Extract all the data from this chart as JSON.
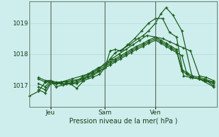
{
  "title": "Pression niveau de la mer( hPa )",
  "bg_color": "#ceeeed",
  "grid_color": "#b0d8d0",
  "line_color": "#1a5c1a",
  "vline_color": "#556655",
  "ylim": [
    1016.3,
    1019.7
  ],
  "yticks": [
    1017,
    1018,
    1019
  ],
  "xtick_labels": [
    "Jeu",
    "Sam",
    "Ven"
  ],
  "xtick_positions": [
    0.07,
    0.38,
    0.67
  ],
  "vline_positions": [
    0.07,
    0.38,
    0.67
  ],
  "lines": [
    {
      "x": [
        0.0,
        0.04,
        0.07,
        0.1,
        0.13,
        0.16,
        0.19,
        0.22,
        0.25,
        0.28,
        0.31,
        0.34,
        0.38,
        0.41,
        0.44,
        0.47,
        0.5,
        0.53,
        0.56,
        0.6,
        0.63,
        0.67,
        0.7,
        0.73,
        0.76,
        0.79,
        0.82,
        0.85,
        0.88,
        0.92,
        0.95,
        1.0
      ],
      "y": [
        1016.85,
        1016.75,
        1017.05,
        1017.05,
        1017.05,
        1017.05,
        1017.05,
        1017.05,
        1017.15,
        1017.25,
        1017.35,
        1017.45,
        1017.55,
        1017.65,
        1017.75,
        1017.85,
        1017.95,
        1018.05,
        1018.15,
        1018.25,
        1018.35,
        1018.45,
        1018.35,
        1018.25,
        1018.15,
        1018.05,
        1017.95,
        1017.35,
        1017.25,
        1017.2,
        1017.15,
        1017.1
      ]
    },
    {
      "x": [
        0.0,
        0.04,
        0.07,
        0.1,
        0.13,
        0.16,
        0.19,
        0.22,
        0.25,
        0.28,
        0.31,
        0.34,
        0.38,
        0.41,
        0.44,
        0.47,
        0.5,
        0.53,
        0.56,
        0.6,
        0.63,
        0.67,
        0.7,
        0.73,
        0.76,
        0.79,
        0.82,
        0.85,
        0.88,
        0.92,
        0.95,
        1.0
      ],
      "y": [
        1016.95,
        1016.85,
        1017.1,
        1017.05,
        1017.05,
        1017.05,
        1017.05,
        1017.1,
        1017.2,
        1017.3,
        1017.4,
        1017.5,
        1017.6,
        1017.7,
        1017.8,
        1017.9,
        1018.0,
        1018.1,
        1018.2,
        1018.3,
        1018.4,
        1018.5,
        1018.4,
        1018.3,
        1018.2,
        1018.1,
        1017.45,
        1017.35,
        1017.25,
        1017.2,
        1017.15,
        1017.05
      ]
    },
    {
      "x": [
        0.0,
        0.04,
        0.07,
        0.1,
        0.13,
        0.16,
        0.19,
        0.22,
        0.25,
        0.28,
        0.31,
        0.34,
        0.38,
        0.41,
        0.44,
        0.47,
        0.5,
        0.53,
        0.56,
        0.6,
        0.63,
        0.67,
        0.7,
        0.73,
        0.76,
        0.79,
        0.82,
        0.85,
        0.88,
        0.92,
        0.95,
        1.0
      ],
      "y": [
        1017.05,
        1016.95,
        1017.15,
        1017.1,
        1017.1,
        1017.1,
        1017.1,
        1017.15,
        1017.25,
        1017.35,
        1017.45,
        1017.55,
        1017.65,
        1017.75,
        1017.85,
        1017.95,
        1018.05,
        1018.15,
        1018.25,
        1018.35,
        1018.45,
        1018.55,
        1018.45,
        1018.35,
        1018.25,
        1018.15,
        1017.5,
        1017.4,
        1017.3,
        1017.25,
        1017.2,
        1017.1
      ]
    },
    {
      "x": [
        0.0,
        0.04,
        0.07,
        0.1,
        0.13,
        0.19,
        0.25,
        0.31,
        0.35,
        0.38,
        0.41,
        0.44,
        0.48,
        0.52,
        0.57,
        0.6,
        0.63,
        0.67,
        0.7,
        0.73,
        0.77,
        0.82,
        0.88,
        0.92,
        1.0
      ],
      "y": [
        1017.2,
        1017.1,
        1017.1,
        1017.05,
        1017.1,
        1017.15,
        1017.2,
        1017.3,
        1017.45,
        1017.55,
        1017.85,
        1018.05,
        1018.15,
        1018.3,
        1018.5,
        1018.6,
        1018.75,
        1019.0,
        1019.3,
        1019.5,
        1019.25,
        1018.75,
        1017.25,
        1017.2,
        1016.95
      ]
    },
    {
      "x": [
        0.0,
        0.04,
        0.07,
        0.1,
        0.13,
        0.19,
        0.25,
        0.31,
        0.35,
        0.38,
        0.42,
        0.46,
        0.5,
        0.54,
        0.58,
        0.62,
        0.67,
        0.71,
        0.75,
        0.79,
        0.83,
        0.87,
        0.92,
        0.96,
        1.0
      ],
      "y": [
        1017.25,
        1017.15,
        1017.15,
        1017.05,
        1017.1,
        1017.2,
        1017.3,
        1017.4,
        1017.55,
        1017.7,
        1017.85,
        1018.0,
        1018.15,
        1018.3,
        1018.45,
        1018.6,
        1018.55,
        1018.5,
        1018.4,
        1018.3,
        1018.2,
        1018.1,
        1017.3,
        1017.25,
        1017.15
      ]
    },
    {
      "x": [
        -0.05,
        0.0,
        0.04,
        0.07,
        0.1,
        0.14,
        0.18,
        0.22,
        0.26,
        0.31,
        0.35,
        0.38,
        0.41,
        0.44,
        0.47,
        0.51,
        0.55,
        0.59,
        0.63,
        0.67,
        0.71,
        0.75,
        0.79,
        0.83,
        0.87,
        0.92,
        0.96,
        1.0
      ],
      "y": [
        1016.65,
        1016.8,
        1017.1,
        1017.15,
        1016.95,
        1017.0,
        1017.05,
        1016.9,
        1017.15,
        1017.25,
        1017.35,
        1017.55,
        1018.1,
        1018.15,
        1018.1,
        1018.3,
        1018.5,
        1018.75,
        1019.0,
        1019.15,
        1019.15,
        1018.7,
        1018.55,
        1017.3,
        1017.25,
        1017.2,
        1017.15,
        1016.98
      ]
    }
  ],
  "figsize": [
    3.2,
    2.0
  ],
  "dpi": 100
}
